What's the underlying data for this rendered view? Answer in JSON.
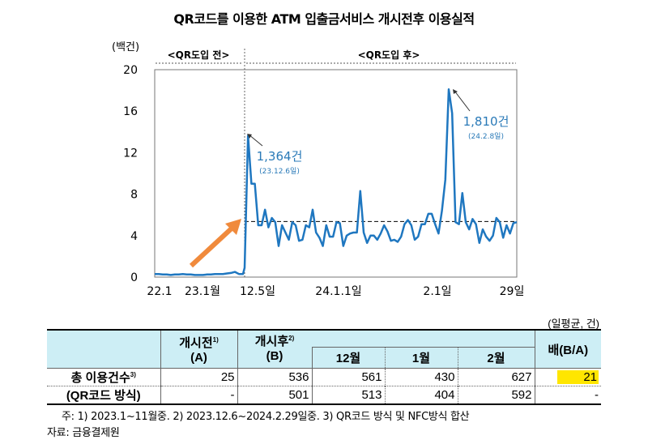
{
  "title": "QR코드를 이용한 ATM 입출금서비스 개시전후 이용실적",
  "chart_data": {
    "type": "line",
    "ylabel": "(백건)",
    "ylim": [
      0,
      20
    ],
    "yticks": [
      0,
      4,
      8,
      12,
      16,
      20
    ],
    "xtick_labels": [
      "22.1",
      "23.1월",
      "12.5일",
      "24.1.1일",
      "2.1일",
      "29일"
    ],
    "period_labels": {
      "before": "<QR도입 전>",
      "after": "<QR도입 후>"
    },
    "pre_series_monthly": [
      0.3,
      0.3,
      0.25,
      0.25,
      0.2,
      0.25,
      0.25,
      0.3,
      0.25,
      0.25,
      0.2,
      0.2,
      0.2,
      0.25,
      0.25,
      0.3,
      0.3,
      0.3,
      0.35,
      0.4,
      0.5,
      0.3,
      0.3
    ],
    "post_series_daily": [
      0.9,
      13.64,
      9,
      9,
      5,
      5,
      6.5,
      4.8,
      5.7,
      5.3,
      3,
      5,
      4.3,
      3.6,
      5.3,
      5,
      3.5,
      3.6,
      5,
      4.8,
      6.5,
      4.3,
      3.8,
      3,
      5,
      3.9,
      3.9,
      5.3,
      5.2,
      3,
      4,
      4.2,
      4.3,
      4.3,
      8.3,
      4.3,
      3.3,
      4,
      4,
      3.6,
      4.2,
      5,
      4.4,
      3.5,
      3.6,
      3.4,
      3.9,
      5.1,
      5.5,
      5,
      3.6,
      3.9,
      5.1,
      5.1,
      6.1,
      6.1,
      5.1,
      4.2,
      6.4,
      9.4,
      18.1,
      15.8,
      5.3,
      5.1,
      8.1,
      5.3,
      4.6,
      5.6,
      5.1,
      3.3,
      4.6,
      3.9,
      3.5,
      4,
      5.7,
      5.3,
      3.8,
      5,
      4.2,
      5.2,
      5.3
    ],
    "average_line": 5.36,
    "annotations": [
      {
        "value": "1,364건",
        "date": "(23.12.6일)"
      },
      {
        "value": "1,810건",
        "date": "(24.2.8일)"
      }
    ],
    "colors": {
      "line": "#1f77c0",
      "arrow": "#f08a3c",
      "annotation": "#2a7ab8"
    },
    "grid": false
  },
  "table": {
    "unit": "(일평균, 건)",
    "headers": {
      "before": "개시전",
      "before_sup": "1)",
      "before_sub": "(A)",
      "after": "개시후",
      "after_sup": "2)",
      "after_sub": "(B)",
      "dec": "12월",
      "jan": "1월",
      "feb": "2월",
      "ratio": "배(B/A)"
    },
    "rows": [
      {
        "label": "총 이용건수",
        "sup": "3)",
        "before": "25",
        "after": "536",
        "dec": "561",
        "jan": "430",
        "feb": "627",
        "ratio": "21"
      },
      {
        "label": "(QR코드 방식)",
        "sup": "",
        "before": "-",
        "after": "501",
        "dec": "513",
        "jan": "404",
        "feb": "592",
        "ratio": "-"
      }
    ],
    "highlight_color": "#ffe600"
  },
  "notes": {
    "footnote": "주: 1) 2023.1~11월중.     2) 2023.12.6~2024.2.29일중.   3) QR코드 방식 및 NFC방식 합산",
    "source": "자료: 금융결제원"
  }
}
